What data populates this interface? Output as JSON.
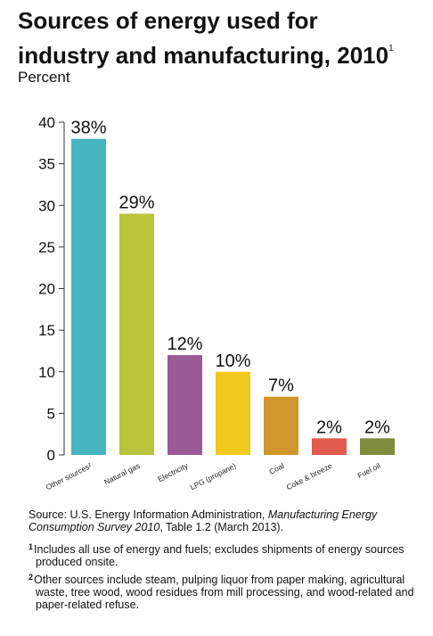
{
  "title": {
    "line1": "Sources of energy used for",
    "line2": "industry and manufacturing, 2010",
    "footnote_marker": "1"
  },
  "subtitle": "Percent",
  "chart_data": {
    "type": "bar",
    "ylabel": "Percent",
    "ylim": [
      0,
      40
    ],
    "yticks": [
      0,
      5,
      10,
      15,
      20,
      25,
      30,
      35,
      40
    ],
    "grid": false,
    "categories": [
      "Other sources²",
      "Natural gas",
      "Electricity",
      "LPG (propane)",
      "Coal",
      "Coke & breeze",
      "Fuel oil"
    ],
    "values": [
      38,
      29,
      12,
      10,
      7,
      2,
      2
    ],
    "data_labels": [
      "38%",
      "29%",
      "12%",
      "10%",
      "7%",
      "2%",
      "2%"
    ],
    "colors": [
      "#47b5c1",
      "#b8c53a",
      "#9a5a96",
      "#f1c81c",
      "#d0962c",
      "#e15a4e",
      "#7e8c3c"
    ]
  },
  "notes": {
    "source_prefix": "Source: U.S. Energy Information Administration, ",
    "source_title": "Manufacturing Energy Consumption Survey 2010",
    "source_suffix": ", Table 1.2 (March 2013).",
    "fn1_marker": "1",
    "fn1_text": "Includes all use of energy and fuels; excludes shipments of energy sources produced onsite.",
    "fn2_marker": "2",
    "fn2_text": "Other sources include steam, pulping liquor from paper making, agricultural waste, tree wood, wood residues from mill processing, and wood-related and paper-related refuse."
  }
}
